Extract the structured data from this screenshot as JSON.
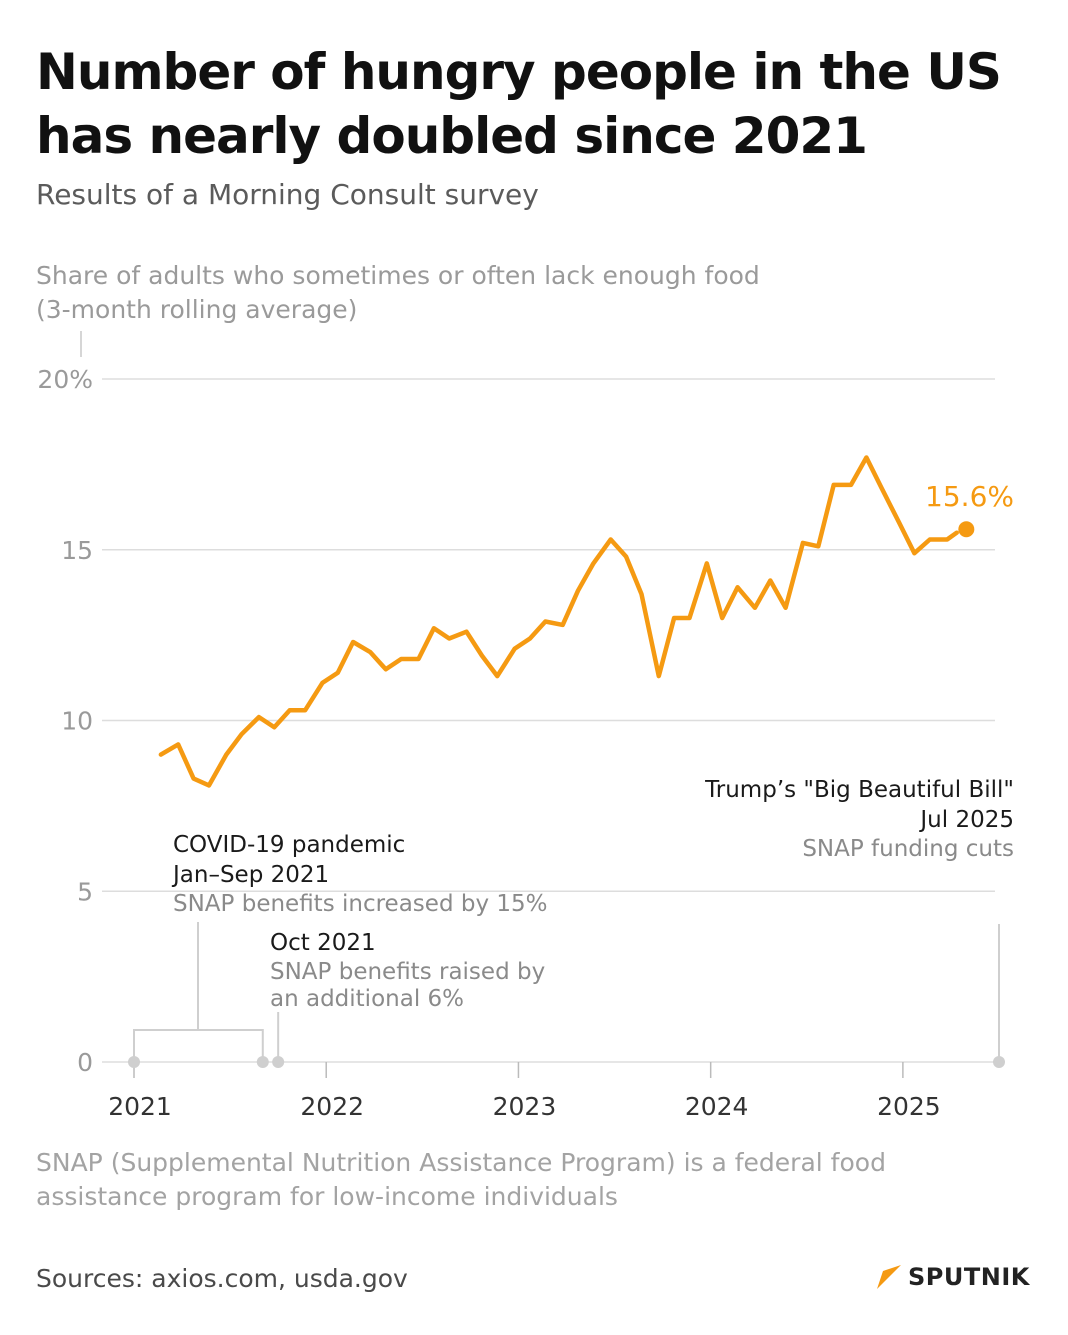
{
  "title_line1": "Number of hungry people in the US",
  "title_line2": "has nearly doubled since 2021",
  "subtitle": "Results of a Morning Consult survey",
  "ylabel_line1": "Share of adults who sometimes or often lack enough food",
  "ylabel_line2": "(3-month rolling average)",
  "footnote_line1": "SNAP (Supplemental Nutrition Assistance Program) is a federal food",
  "footnote_line2": "assistance program for low-income individuals",
  "sources": "Sources: axios.com, usda.gov",
  "logo_text": "SPUTNIK",
  "colors": {
    "line": "#f59a12",
    "grid": "#dddddd",
    "axis_text": "#9a9a9a",
    "annotation_marker": "#cfcfcf",
    "logo_accent": "#f59a12"
  },
  "chart_data": {
    "type": "line",
    "xlabel": "",
    "ylabel": "Share of adults who sometimes or often lack enough food (3-month rolling average)",
    "ylim": [
      0,
      20
    ],
    "xlim": [
      2021.0,
      2025.5
    ],
    "grid": true,
    "y_ticks": [
      "0",
      "5",
      "10",
      "15",
      "20%"
    ],
    "y_tick_values": [
      0,
      5,
      10,
      15,
      20
    ],
    "x_ticks": [
      "2021",
      "2022",
      "2023",
      "2024",
      "2025"
    ],
    "x_tick_values": [
      2021,
      2022,
      2023,
      2024,
      2025
    ],
    "series": [
      {
        "x": [
          2021.14,
          2021.23,
          2021.31,
          2021.39,
          2021.48,
          2021.56,
          2021.65,
          2021.73,
          2021.81,
          2021.89,
          2021.98,
          2022.06,
          2022.14,
          2022.23,
          2022.31,
          2022.39,
          2022.48,
          2022.56,
          2022.64,
          2022.73,
          2022.81,
          2022.89,
          2022.98,
          2023.06,
          2023.14,
          2023.23,
          2023.31,
          2023.39,
          2023.48,
          2023.56,
          2023.64,
          2023.73,
          2023.81,
          2023.89,
          2023.98,
          2024.06,
          2024.14,
          2024.23,
          2024.31,
          2024.39,
          2024.48,
          2024.56,
          2024.64,
          2024.73,
          2024.81,
          2024.89,
          2024.98,
          2025.06,
          2025.14,
          2025.23,
          2025.28
        ],
        "values": [
          9.0,
          9.3,
          8.3,
          8.1,
          9.0,
          9.6,
          10.1,
          9.8,
          10.3,
          10.3,
          11.1,
          11.4,
          12.3,
          12.0,
          11.5,
          11.8,
          11.8,
          12.7,
          12.4,
          12.6,
          11.9,
          11.3,
          12.1,
          12.4,
          12.9,
          12.8,
          13.8,
          14.6,
          15.3,
          14.8,
          13.7,
          11.3,
          13.0,
          13.0,
          14.6,
          13.0,
          13.9,
          13.3,
          14.1,
          13.3,
          15.2,
          15.1,
          16.9,
          16.9,
          17.7,
          16.8,
          15.8,
          14.9,
          15.3,
          15.3,
          15.5
        ]
      }
    ],
    "last_point": {
      "x": 2025.33,
      "value": 15.6,
      "label": "15.6%"
    },
    "annotations": [
      {
        "title": "COVID-19 pandemic",
        "date": "Jan–Sep 2021",
        "desc": "SNAP benefits increased by 15%",
        "x_start": 2021.0,
        "x_end": 2021.67
      },
      {
        "date": "Oct 2021",
        "desc_line1": "SNAP benefits raised by",
        "desc_line2": "an additional 6%",
        "x": 2021.75
      },
      {
        "title": "Trump’s \"Big Beautiful Bill\"",
        "date": "Jul 2025",
        "desc": "SNAP funding cuts",
        "x": 2025.5
      }
    ]
  }
}
